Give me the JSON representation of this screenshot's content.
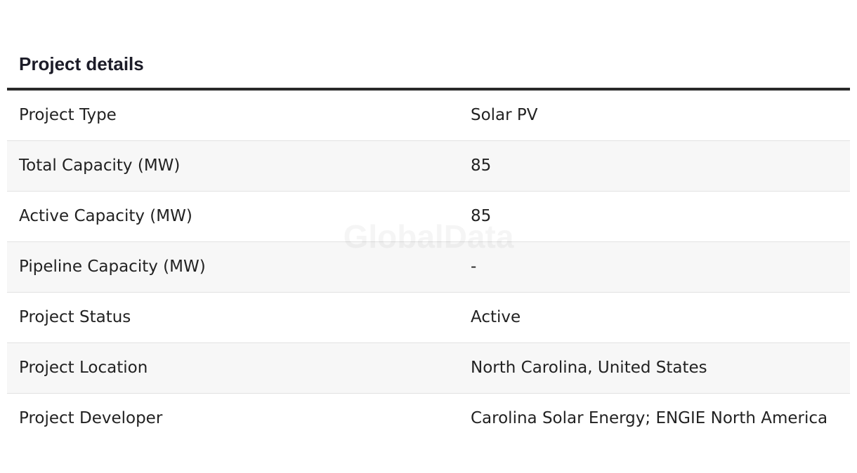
{
  "header": {
    "title": "Project details"
  },
  "watermark": "GlobalData",
  "table": {
    "rows": [
      [
        "Project Type",
        "Solar PV"
      ],
      [
        "Total Capacity (MW)",
        "85"
      ],
      [
        "Active Capacity (MW)",
        "85"
      ],
      [
        "Pipeline Capacity (MW)",
        "-"
      ],
      [
        "Project Status",
        "Active"
      ],
      [
        "Project Location",
        "North Carolina, United States"
      ],
      [
        "Project Developer",
        "Carolina Solar Energy; ENGIE North America"
      ]
    ]
  }
}
